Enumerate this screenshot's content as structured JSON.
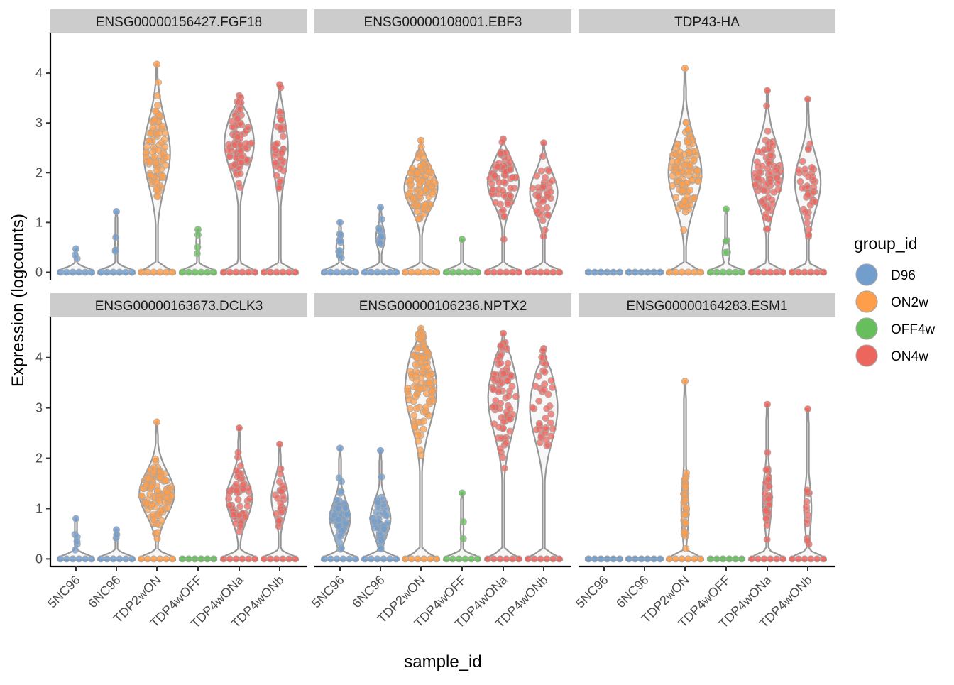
{
  "chart_data": {
    "type": "violin",
    "xlabel": "sample_id",
    "ylabel": "Expression (logcounts)",
    "categories": [
      "5NC96",
      "6NC96",
      "TDP2wON",
      "TDP4wOFF",
      "TDP4wONa",
      "TDP4wONb"
    ],
    "sample_group": [
      "D96",
      "D96",
      "ON2w",
      "OFF4w",
      "ON4w",
      "ON4w"
    ],
    "yticks": [
      0,
      1,
      2,
      3,
      4
    ],
    "legend": {
      "title": "group_id",
      "position": "right",
      "entries": [
        {
          "name": "D96",
          "color": "#729ECE"
        },
        {
          "name": "ON2w",
          "color": "#FF9E4A"
        },
        {
          "name": "OFF4w",
          "color": "#67BF5C"
        },
        {
          "name": "ON4w",
          "color": "#ED665D"
        }
      ]
    },
    "panels": [
      {
        "title": "ENSG00000156427.FGF18",
        "ylim": [
          -0.15,
          4.8
        ],
        "max": [
          0.47,
          1.22,
          4.18,
          0.86,
          3.55,
          3.77
        ],
        "high": [
          0.05,
          0.08,
          0.72,
          0.1,
          0.8,
          0.45
        ],
        "median": [
          0.4,
          0.6,
          2.4,
          0.6,
          2.6,
          2.5
        ],
        "n": [
          3,
          4,
          90,
          4,
          80,
          40
        ]
      },
      {
        "title": "ENSG00000108001.EBF3",
        "ylim": [
          -0.15,
          4.8
        ],
        "max": [
          1.0,
          1.3,
          2.65,
          0.66,
          2.68,
          2.6
        ],
        "high": [
          0.2,
          0.25,
          0.9,
          0.05,
          0.85,
          0.75
        ],
        "median": [
          0.5,
          0.7,
          1.7,
          0.66,
          1.8,
          1.6
        ],
        "n": [
          12,
          14,
          100,
          1,
          70,
          40
        ]
      },
      {
        "title": "TDP43-HA",
        "ylim": [
          -0.15,
          4.8
        ],
        "max": [
          0.0,
          0.0,
          4.1,
          1.27,
          3.65,
          3.48
        ],
        "high": [
          0.0,
          0.0,
          0.9,
          0.2,
          0.85,
          0.7
        ],
        "median": [
          0,
          0,
          2.0,
          0.4,
          2.0,
          1.8
        ],
        "n": [
          0,
          0,
          110,
          5,
          80,
          40
        ]
      },
      {
        "title": "ENSG00000163673.DCLK3",
        "ylim": [
          -0.15,
          4.8
        ],
        "max": [
          0.8,
          0.58,
          2.72,
          0.0,
          2.6,
          2.28
        ],
        "high": [
          0.06,
          0.04,
          0.95,
          0.0,
          0.7,
          0.45
        ],
        "median": [
          0.4,
          0.45,
          1.3,
          0,
          1.2,
          1.2
        ],
        "n": [
          6,
          3,
          110,
          0,
          60,
          30
        ]
      },
      {
        "title": "ENSG00000106236.NPTX2",
        "ylim": [
          -0.15,
          4.8
        ],
        "max": [
          2.2,
          2.15,
          4.58,
          1.31,
          4.48,
          4.18
        ],
        "high": [
          0.55,
          0.55,
          0.85,
          0.08,
          0.82,
          0.75
        ],
        "median": [
          0.8,
          0.8,
          3.4,
          0.6,
          3.2,
          3.0
        ],
        "n": [
          60,
          50,
          120,
          3,
          80,
          40
        ]
      },
      {
        "title": "ENSG00000164283.ESM1",
        "ylim": [
          -0.15,
          4.8
        ],
        "max": [
          0.0,
          0.0,
          3.53,
          0.0,
          3.07,
          2.98
        ],
        "high": [
          0.0,
          0.0,
          0.2,
          0.0,
          0.25,
          0.2
        ],
        "median": [
          0,
          0,
          1.0,
          0,
          1.2,
          1.0
        ],
        "n": [
          0,
          0,
          40,
          0,
          30,
          15
        ]
      }
    ]
  }
}
